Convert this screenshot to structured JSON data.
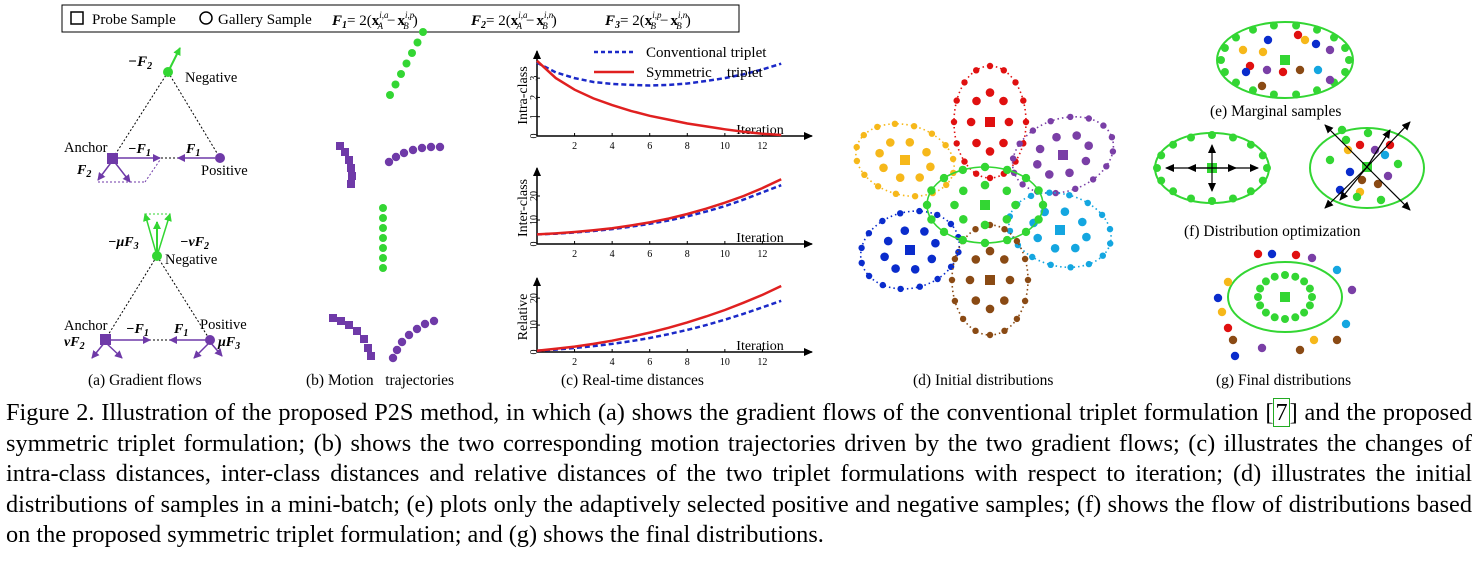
{
  "legend": {
    "probe": "Probe Sample",
    "gallery": "Gallery Sample",
    "f1_lhs": "F",
    "f1_sub": "1",
    "f2_lhs": "F",
    "f2_sub": "2",
    "f3_lhs": "F",
    "f3_sub": "3",
    "formula_eq": "= 2(",
    "x": "x",
    "minus": "−",
    "f1_t1_sup": "i,a",
    "f1_t1_sub": "A",
    "f1_t2_sup": "i,p",
    "f1_t2_sub": "B",
    "f2_t1_sup": "i,a",
    "f2_t1_sub": "A",
    "f2_t2_sup": "i,n",
    "f2_t2_sub": "B",
    "f3_t1_sup": "i,p",
    "f3_t1_sub": "B",
    "f3_t2_sup": "i,n",
    "f3_t2_sub": "B",
    "close": ")"
  },
  "panel_a": {
    "top": {
      "neg_force": "−F",
      "neg_force_sub": "2",
      "negative": "Negative",
      "anchor": "Anchor",
      "minus_f1": "−F",
      "minus_f1_sub": "1",
      "f1": "F",
      "f1_sub": "1",
      "f2": "F",
      "f2_sub": "2",
      "positive": "Positive"
    },
    "bottom": {
      "mu_f3": "−μF",
      "mu_f3_sub": "3",
      "nu_f2": "−νF",
      "nu_f2_sub": "2",
      "negative": "Negative",
      "anchor": "Anchor",
      "minus_f1": "−F",
      "minus_f1_sub": "1",
      "f1": "F",
      "f1_sub": "1",
      "positive": "Positive",
      "nu_f2_left": "νF",
      "nu_f2_left_sub": "2",
      "mu_f3_right": "μF",
      "mu_f3_right_sub": "3"
    }
  },
  "subcaptions": {
    "a": "(a) Gradient flows",
    "b": "(b) Motion   trajectories",
    "c": "(c) Real-time distances",
    "d": "(d) Initial distributions",
    "e": "(e) Marginal samples",
    "f": "(f) Distribution optimization",
    "g": "(g) Final distributions"
  },
  "colors": {
    "purple": "#6f3aa8",
    "green": "#33d633",
    "red": "#e01010",
    "orange": "#f6b81a",
    "blue": "#0a2ccc",
    "brown": "#8a4a14",
    "cyan": "#14a6e0",
    "violet": "#7a3fa6",
    "dashed_blue": "#1b29c8",
    "solid_red": "#e02020"
  },
  "chart_data": [
    {
      "type": "line",
      "title": "",
      "ylabel": "Intra-class",
      "xlabel": "Iteration",
      "xticks": [
        2,
        4,
        6,
        8,
        10,
        12
      ],
      "yticks": [
        0,
        1,
        2,
        3
      ],
      "xlim": [
        0,
        14
      ],
      "ylim": [
        0,
        4.2
      ],
      "legend": [
        "Conventional triplet",
        "Symmetric    triplet"
      ],
      "legend_position": "top-right",
      "series": [
        {
          "name": "Conventional triplet",
          "style": "dashed",
          "x": [
            0,
            1,
            2,
            3,
            4,
            5,
            6,
            7,
            8,
            9,
            10,
            11,
            12,
            13
          ],
          "y": [
            3.8,
            3.3,
            3.0,
            2.8,
            2.7,
            2.65,
            2.62,
            2.65,
            2.72,
            2.85,
            3.0,
            3.2,
            3.45,
            3.75
          ]
        },
        {
          "name": "Symmetric    triplet",
          "style": "solid",
          "x": [
            0,
            1,
            2,
            3,
            4,
            5,
            6,
            7,
            8,
            9,
            10,
            11,
            12,
            13
          ],
          "y": [
            3.9,
            3.0,
            2.4,
            1.95,
            1.6,
            1.3,
            1.05,
            0.85,
            0.65,
            0.5,
            0.35,
            0.22,
            0.12,
            0.05
          ]
        }
      ]
    },
    {
      "type": "line",
      "title": "",
      "ylabel": "Inter-class",
      "xlabel": "Iteration",
      "xticks": [
        2,
        4,
        6,
        8,
        10,
        12
      ],
      "yticks": [
        0,
        10,
        20
      ],
      "xlim": [
        0,
        14
      ],
      "ylim": [
        0,
        30
      ],
      "series": [
        {
          "name": "Conventional triplet",
          "style": "dashed",
          "x": [
            0,
            1,
            2,
            3,
            4,
            5,
            6,
            7,
            8,
            9,
            10,
            11,
            12,
            13
          ],
          "y": [
            4,
            4.3,
            4.8,
            5.4,
            6.2,
            7.2,
            8.4,
            9.8,
            11.5,
            13.5,
            15.8,
            18.5,
            21.5,
            24.5
          ]
        },
        {
          "name": "Symmetric    triplet",
          "style": "solid",
          "x": [
            0,
            1,
            2,
            3,
            4,
            5,
            6,
            7,
            8,
            9,
            10,
            11,
            12,
            13
          ],
          "y": [
            4,
            4.4,
            5.0,
            5.7,
            6.6,
            7.7,
            9.0,
            10.6,
            12.5,
            14.7,
            17.2,
            20.0,
            23.3,
            27.0
          ]
        }
      ]
    },
    {
      "type": "line",
      "title": "",
      "ylabel": "Relative",
      "xlabel": "Iteration",
      "xticks": [
        2,
        4,
        6,
        8,
        10,
        12
      ],
      "yticks": [
        0,
        10,
        20
      ],
      "xlim": [
        0,
        14
      ],
      "ylim": [
        0,
        26
      ],
      "series": [
        {
          "name": "Conventional triplet",
          "style": "dashed",
          "x": [
            0,
            1,
            2,
            3,
            4,
            5,
            6,
            7,
            8,
            9,
            10,
            11,
            12,
            13
          ],
          "y": [
            0.5,
            0.9,
            1.5,
            2.2,
            3.0,
            4.0,
            5.2,
            6.6,
            8.2,
            10.0,
            12.0,
            14.2,
            16.6,
            19.0
          ]
        },
        {
          "name": "Symmetric    triplet",
          "style": "solid",
          "x": [
            0,
            1,
            2,
            3,
            4,
            5,
            6,
            7,
            8,
            9,
            10,
            11,
            12,
            13
          ],
          "y": [
            0.5,
            1.2,
            2.0,
            3.0,
            4.2,
            5.6,
            7.2,
            9.0,
            11.0,
            13.2,
            15.6,
            18.3,
            21.2,
            24.5
          ]
        }
      ]
    }
  ],
  "caption": {
    "part1": "Figure 2. Illustration of the proposed P2S method, in which (a) shows the gradient flows of the conventional triplet formulation [",
    "ref": "7",
    "part2": "] and the proposed symmetric triplet formulation; (b) shows the two corresponding motion trajectories driven by the two gradient flows; (c) illustrates the changes of intra-class distances, inter-class distances and relative distances of the two triplet formulations with respect to iteration; (d) illustrates the initial distributions of samples in a mini-batch; (e) plots only the adaptively selected positive and negative samples; (f) shows the flow of distributions based on the proposed symmetric triplet formulation; and (g) shows the final distributions."
  }
}
